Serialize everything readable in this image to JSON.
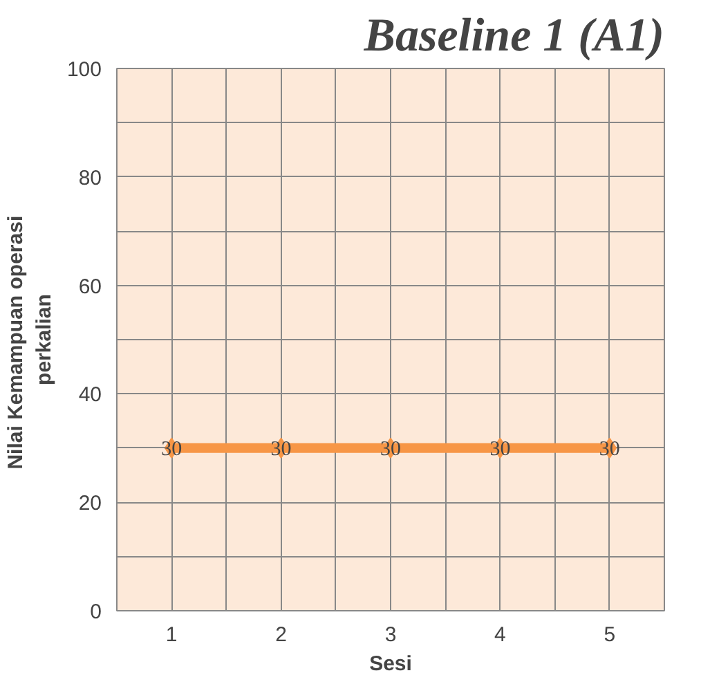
{
  "chart_data": {
    "type": "line",
    "title": "Baseline 1 (A1)",
    "xlabel": "Sesi",
    "ylabel": "Nilai  Kemampuan operasi\nperkalian",
    "categories": [
      "1",
      "2",
      "3",
      "4",
      "5"
    ],
    "series": [
      {
        "color": "#f79646",
        "values": [
          30,
          30,
          30,
          30,
          30
        ]
      }
    ],
    "ylim": [
      0,
      100
    ],
    "yticks": [
      0,
      20,
      40,
      60,
      80,
      100
    ],
    "grid": true,
    "marker": "diamond",
    "line_style": "solid",
    "data_labels": true
  }
}
